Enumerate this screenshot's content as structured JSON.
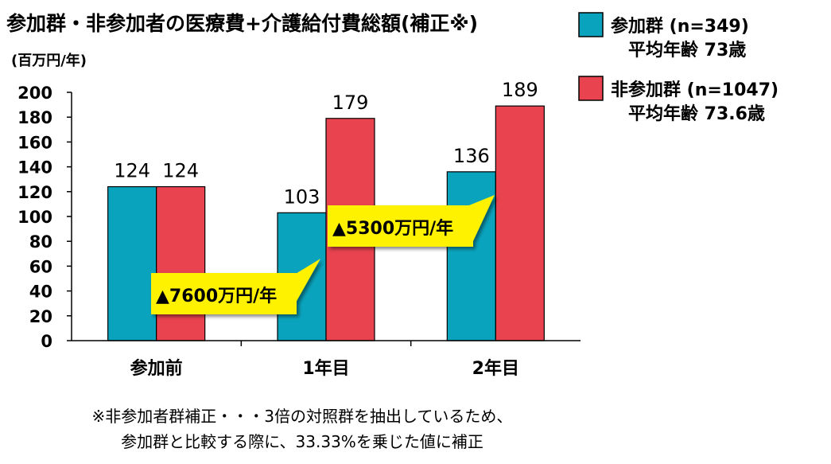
{
  "title": "参加群・非参加者の医療費+介護給付費総額(補正※)",
  "colors": {
    "participants": "#0aa3bd",
    "non_participants": "#e8434f",
    "callout": "#fff200"
  },
  "chart_data": {
    "type": "bar",
    "ylabel": "(百万円/年)",
    "ylim": [
      0,
      200
    ],
    "yticks": [
      "0",
      "20",
      "40",
      "60",
      "80",
      "100",
      "120",
      "140",
      "160",
      "180",
      "200"
    ],
    "grid": false,
    "legend_position": "top-right",
    "categories": [
      "参加前",
      "1年目",
      "2年目"
    ],
    "series": [
      {
        "name": "参加群 (n=349)",
        "sub": "平均年齢 73歳",
        "values": [
          124,
          103,
          136
        ],
        "labels": [
          "124",
          "103",
          "136"
        ]
      },
      {
        "name": "非参加群 (n=1047)",
        "sub": "平均年齢 73.6歳",
        "values": [
          124,
          179,
          189
        ],
        "labels": [
          "124",
          "179",
          "189"
        ]
      }
    ],
    "annotations": [
      {
        "text": "▲7600万円/年",
        "category_index": 1
      },
      {
        "text": "▲5300万円/年",
        "category_index": 2
      }
    ]
  },
  "footnote": {
    "line1": "※非参加者群補正・・・3倍の対照群を抽出しているため、",
    "line2": "参加群と比較する際に、33.33%を乗じた値に補正"
  }
}
